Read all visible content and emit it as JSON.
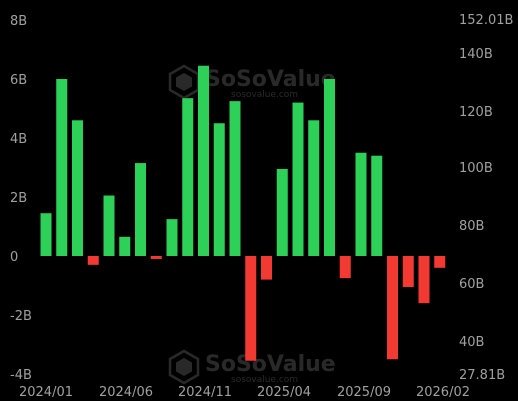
{
  "watermark": {
    "brand": "SoSoValue",
    "site": "sosovalue.com"
  },
  "colors": {
    "positive": "#2ed158",
    "negative": "#f23a33",
    "axis_text": "#a0a0a0",
    "background": "#000000"
  },
  "chart_data": {
    "type": "bar",
    "title": "",
    "xlabel": "",
    "ylabel": "",
    "ylim": [
      -4,
      8
    ],
    "y_ticks": [
      8,
      6,
      4,
      2,
      0,
      -2,
      -4
    ],
    "y_tick_labels": [
      "8B",
      "6B",
      "4B",
      "2B",
      "0",
      "-2B",
      "-4B"
    ],
    "y2_ticks": [
      "152.01B",
      "140B",
      "120B",
      "100B",
      "80B",
      "60B",
      "40B",
      "27.81B"
    ],
    "x_tick_labels": [
      "2024/01",
      "2024/06",
      "2024/11",
      "2025/04",
      "2025/09",
      "2026/02"
    ],
    "grid": false,
    "series": [
      {
        "values": [
          1.45,
          6.0,
          4.6,
          -0.3,
          2.05,
          0.65,
          3.15,
          -0.1,
          1.25,
          5.35,
          6.45,
          4.5,
          5.25,
          -3.55,
          -0.8,
          2.95,
          5.2,
          4.6,
          6.0,
          -0.75,
          3.5,
          3.4,
          -3.5,
          -1.05,
          -1.6,
          -0.4
        ]
      }
    ]
  }
}
